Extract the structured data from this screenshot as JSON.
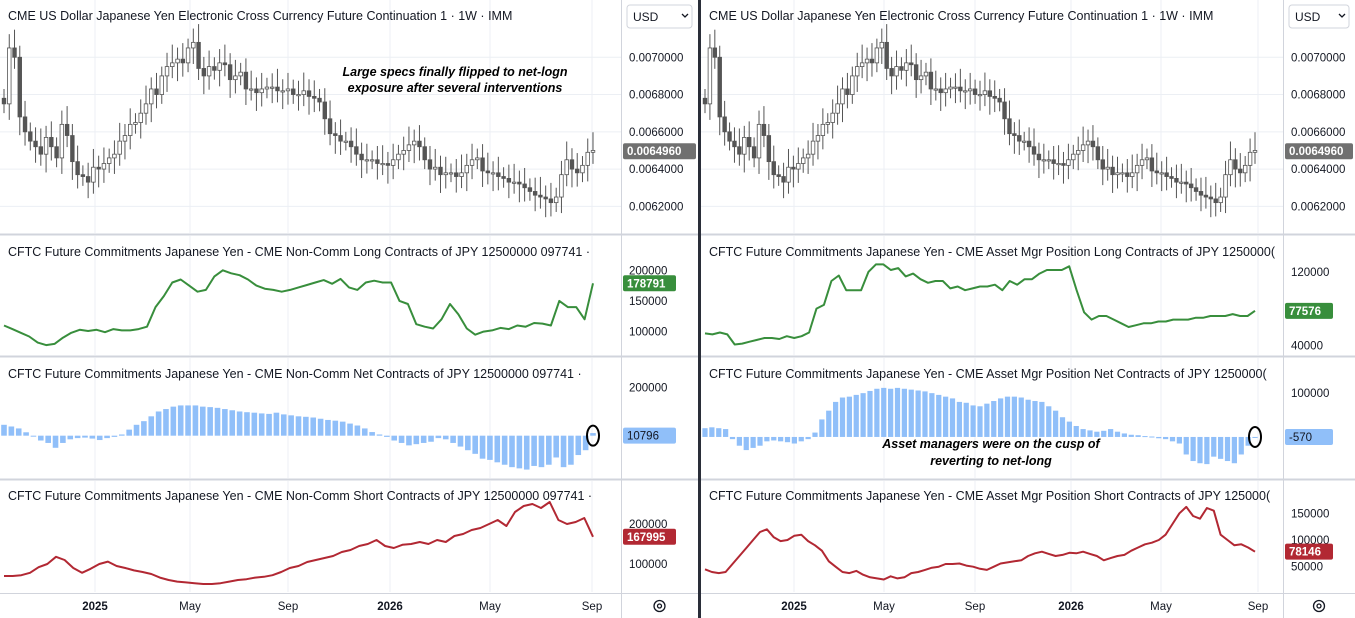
{
  "currency_selector": {
    "label": "USD"
  },
  "settings_icon": "gear-icon",
  "colors": {
    "price": "#555555",
    "long": "#388e3c",
    "net": "#90bff9",
    "short": "#b22833",
    "grid": "#eceff4"
  },
  "x_axis": {
    "labels": [
      "2025",
      "May",
      "Sep",
      "2026",
      "May",
      "Sep"
    ],
    "bold": [
      true,
      false,
      false,
      true,
      false,
      false
    ]
  },
  "left": {
    "price_title": "CME US Dollar Japanese Yen Electronic Cross Currency Future Continuation 1 · 1W · IMM",
    "price_ticks": [
      "0.0070000",
      "0.0068000",
      "0.0066000",
      "0.0064000",
      "0.0062000"
    ],
    "price_last": "0.0064960",
    "long_title": "CFTC Future Commitments Japanese Yen - CME Non-Comm Long Contracts of JPY 12500000 097741 ·",
    "long_ticks": [
      "200000",
      "150000",
      "100000"
    ],
    "long_last": "178791",
    "net_title": "CFTC Future Commitments Japanese Yen - CME Non-Comm Net Contracts of JPY 12500000 097741 ·",
    "net_ticks": [
      "200000"
    ],
    "net_last": "10796",
    "short_title": "CFTC Future Commitments Japanese Yen - CME Non-Comm Short Contracts of JPY 12500000 097741 ·",
    "short_ticks": [
      "200000",
      "100000"
    ],
    "short_last": "167995",
    "annotation": [
      "Large specs finally flipped to net-logn",
      "exposure after several interventions"
    ]
  },
  "right": {
    "price_title": "CME US Dollar Japanese Yen Electronic Cross Currency Future Continuation 1 · 1W · IMM",
    "price_ticks": [
      "0.0070000",
      "0.0068000",
      "0.0066000",
      "0.0064000",
      "0.0062000"
    ],
    "price_last": "0.0064960",
    "long_title": "CFTC Future Commitments Japanese Yen - CME Asset Mgr Position Long Contracts of JPY 1250000(",
    "long_ticks": [
      "120000",
      "80000",
      "40000"
    ],
    "long_last": "77576",
    "net_title": "CFTC Future Commitments Japanese Yen - CME Asset Mgr Position Net Contracts of JPY 1250000(",
    "net_ticks": [
      "100000",
      "0"
    ],
    "net_last": "-570",
    "short_title": "CFTC Future Commitments Japanese Yen - CME Asset Mgr Position Short Contracts of JPY 125000(",
    "short_ticks": [
      "150000",
      "100000",
      "50000"
    ],
    "short_last": "78146",
    "annotation": [
      "Asset managers were on the cusp of",
      "reverting to net-long"
    ]
  },
  "chart_data": [
    {
      "type": "line",
      "name": "USD/JPY futures weekly close (approx.)",
      "x_start": "2024-09",
      "x_end": "2026-09",
      "ylim": [
        0.0061,
        0.0072
      ],
      "values": [
        0.00675,
        0.00705,
        0.007,
        0.00668,
        0.0066,
        0.00655,
        0.00652,
        0.00648,
        0.00657,
        0.00652,
        0.00646,
        0.00664,
        0.00658,
        0.00644,
        0.00637,
        0.00636,
        0.00633,
        0.00641,
        0.0064,
        0.00643,
        0.00646,
        0.00648,
        0.00655,
        0.00658,
        0.00664,
        0.00665,
        0.0067,
        0.00675,
        0.00683,
        0.0068,
        0.0069,
        0.00695,
        0.00697,
        0.00699,
        0.00697,
        0.00705,
        0.00708,
        0.00694,
        0.0069,
        0.00695,
        0.00693,
        0.00697,
        0.00696,
        0.00688,
        0.0069,
        0.00692,
        0.00683,
        0.00683,
        0.00681,
        0.00683,
        0.00684,
        0.00684,
        0.00682,
        0.00682,
        0.00683,
        0.0068,
        0.0068,
        0.00682,
        0.00679,
        0.00678,
        0.00676,
        0.00667,
        0.00659,
        0.00658,
        0.00655,
        0.00655,
        0.00652,
        0.00648,
        0.00645,
        0.00645,
        0.00645,
        0.00643,
        0.00643,
        0.00642,
        0.00645,
        0.00648,
        0.0065,
        0.00653,
        0.00655,
        0.00652,
        0.00645,
        0.0064,
        0.00641,
        0.00637,
        0.00638,
        0.00638,
        0.00636,
        0.00638,
        0.00642,
        0.00645,
        0.00646,
        0.00639,
        0.00638,
        0.00638,
        0.00636,
        0.00635,
        0.00633,
        0.00633,
        0.00632,
        0.0063,
        0.00628,
        0.00626,
        0.00625,
        0.00624,
        0.00622,
        0.00625,
        0.00637,
        0.00645,
        0.0064,
        0.00638,
        0.00642,
        0.00649,
        0.0065
      ]
    },
    {
      "type": "line",
      "name": "Non-Comm Long Contracts",
      "ylim": [
        70000,
        220000
      ],
      "values": [
        110000,
        104000,
        98000,
        92000,
        82000,
        78000,
        80000,
        90000,
        98000,
        103000,
        101000,
        103000,
        99000,
        104000,
        102000,
        102000,
        104000,
        108000,
        140000,
        158000,
        180000,
        185000,
        175000,
        165000,
        168000,
        190000,
        200000,
        195000,
        192000,
        185000,
        175000,
        170000,
        168000,
        165000,
        168000,
        172000,
        176000,
        180000,
        184000,
        178000,
        186000,
        172000,
        168000,
        180000,
        183000,
        180000,
        180000,
        150000,
        145000,
        112000,
        108000,
        105000,
        120000,
        145000,
        128000,
        105000,
        95000,
        100000,
        102000,
        106000,
        104000,
        110000,
        108000,
        114000,
        113000,
        110000,
        150000,
        140000,
        140000,
        120000,
        178791
      ]
    },
    {
      "type": "bar",
      "name": "Non-Comm Net Contracts",
      "ylim": [
        -150000,
        230000
      ],
      "values": [
        45000,
        38000,
        30000,
        14000,
        0,
        -20000,
        -30000,
        -50000,
        -30000,
        -15000,
        -10000,
        -8000,
        -12000,
        -18000,
        -10000,
        -5000,
        5000,
        25000,
        45000,
        60000,
        80000,
        100000,
        110000,
        120000,
        125000,
        125000,
        125000,
        120000,
        118000,
        115000,
        110000,
        105000,
        100000,
        97000,
        95000,
        92000,
        90000,
        95000,
        88000,
        84000,
        80000,
        78000,
        75000,
        70000,
        65000,
        62000,
        58000,
        50000,
        42000,
        30000,
        15000,
        5000,
        -5000,
        -20000,
        -30000,
        -40000,
        -35000,
        -30000,
        -25000,
        -10000,
        -15000,
        -30000,
        -45000,
        -60000,
        -75000,
        -95000,
        -100000,
        -110000,
        -120000,
        -130000,
        -135000,
        -140000,
        -125000,
        -130000,
        -120000,
        -90000,
        -130000,
        -120000,
        -80000,
        -60000,
        10796
      ]
    },
    {
      "type": "line",
      "name": "Non-Comm Short Contracts",
      "ylim": [
        40000,
        260000
      ],
      "values": [
        70000,
        70000,
        72000,
        78000,
        92000,
        100000,
        118000,
        110000,
        90000,
        78000,
        88000,
        100000,
        106000,
        95000,
        90000,
        84000,
        80000,
        75000,
        66000,
        60000,
        56000,
        54000,
        52000,
        50000,
        50000,
        52000,
        56000,
        60000,
        62000,
        66000,
        68000,
        72000,
        80000,
        90000,
        95000,
        105000,
        110000,
        115000,
        120000,
        130000,
        135000,
        145000,
        150000,
        160000,
        145000,
        140000,
        148000,
        150000,
        155000,
        150000,
        160000,
        155000,
        170000,
        175000,
        185000,
        190000,
        200000,
        210000,
        195000,
        230000,
        245000,
        250000,
        240000,
        255000,
        210000,
        200000,
        205000,
        215000,
        167995
      ]
    },
    {
      "type": "line",
      "name": "Asset Mgr Position Long Contracts",
      "ylim": [
        35000,
        135000
      ],
      "values": [
        53000,
        52000,
        54000,
        52000,
        41000,
        42000,
        44000,
        46000,
        48000,
        48000,
        47000,
        50000,
        48000,
        50000,
        54000,
        80000,
        84000,
        110000,
        116000,
        100000,
        100000,
        100000,
        120000,
        128000,
        128000,
        122000,
        124000,
        115000,
        118000,
        112000,
        108000,
        110000,
        110000,
        102000,
        104000,
        100000,
        102000,
        104000,
        104000,
        106000,
        100000,
        110000,
        106000,
        112000,
        112000,
        118000,
        122000,
        122000,
        122000,
        126000,
        100000,
        76000,
        68000,
        72000,
        72000,
        68000,
        64000,
        60000,
        62000,
        64000,
        64000,
        66000,
        66000,
        68000,
        68000,
        68000,
        70000,
        70000,
        72000,
        72000,
        72000,
        74000,
        72000,
        72000,
        77576
      ]
    },
    {
      "type": "bar",
      "name": "Asset Mgr Position Net Contracts",
      "ylim": [
        -80000,
        130000
      ],
      "values": [
        20000,
        22000,
        20000,
        18000,
        -5000,
        -20000,
        -30000,
        -25000,
        -20000,
        -10000,
        -8000,
        -10000,
        -12000,
        -15000,
        -10000,
        -5000,
        10000,
        40000,
        60000,
        80000,
        90000,
        92000,
        96000,
        100000,
        105000,
        110000,
        112000,
        110000,
        112000,
        110000,
        108000,
        106000,
        104000,
        100000,
        96000,
        92000,
        88000,
        80000,
        78000,
        72000,
        70000,
        76000,
        82000,
        88000,
        92000,
        92000,
        90000,
        85000,
        82000,
        80000,
        70000,
        60000,
        45000,
        35000,
        25000,
        18000,
        15000,
        12000,
        14000,
        18000,
        12000,
        8000,
        5000,
        4000,
        2000,
        1000,
        -3000,
        -5000,
        -10000,
        -15000,
        -40000,
        -55000,
        -60000,
        -62000,
        -45000,
        -50000,
        -55000,
        -60000,
        -40000,
        -20000,
        -570
      ]
    },
    {
      "type": "line",
      "name": "Asset Mgr Position Short Contracts",
      "ylim": [
        10000,
        175000
      ],
      "values": [
        45000,
        40000,
        38000,
        40000,
        55000,
        70000,
        85000,
        100000,
        115000,
        120000,
        105000,
        98000,
        100000,
        108000,
        110000,
        98000,
        90000,
        80000,
        60000,
        50000,
        40000,
        38000,
        42000,
        35000,
        30000,
        28000,
        26000,
        32000,
        28000,
        30000,
        38000,
        40000,
        44000,
        48000,
        50000,
        55000,
        55000,
        56000,
        52000,
        50000,
        46000,
        44000,
        50000,
        56000,
        58000,
        60000,
        62000,
        70000,
        75000,
        78000,
        74000,
        70000,
        72000,
        76000,
        75000,
        78000,
        74000,
        70000,
        62000,
        66000,
        70000,
        72000,
        80000,
        86000,
        92000,
        95000,
        100000,
        110000,
        130000,
        150000,
        162000,
        145000,
        140000,
        160000,
        155000,
        110000,
        100000,
        90000,
        92000,
        86000,
        78146
      ]
    }
  ]
}
